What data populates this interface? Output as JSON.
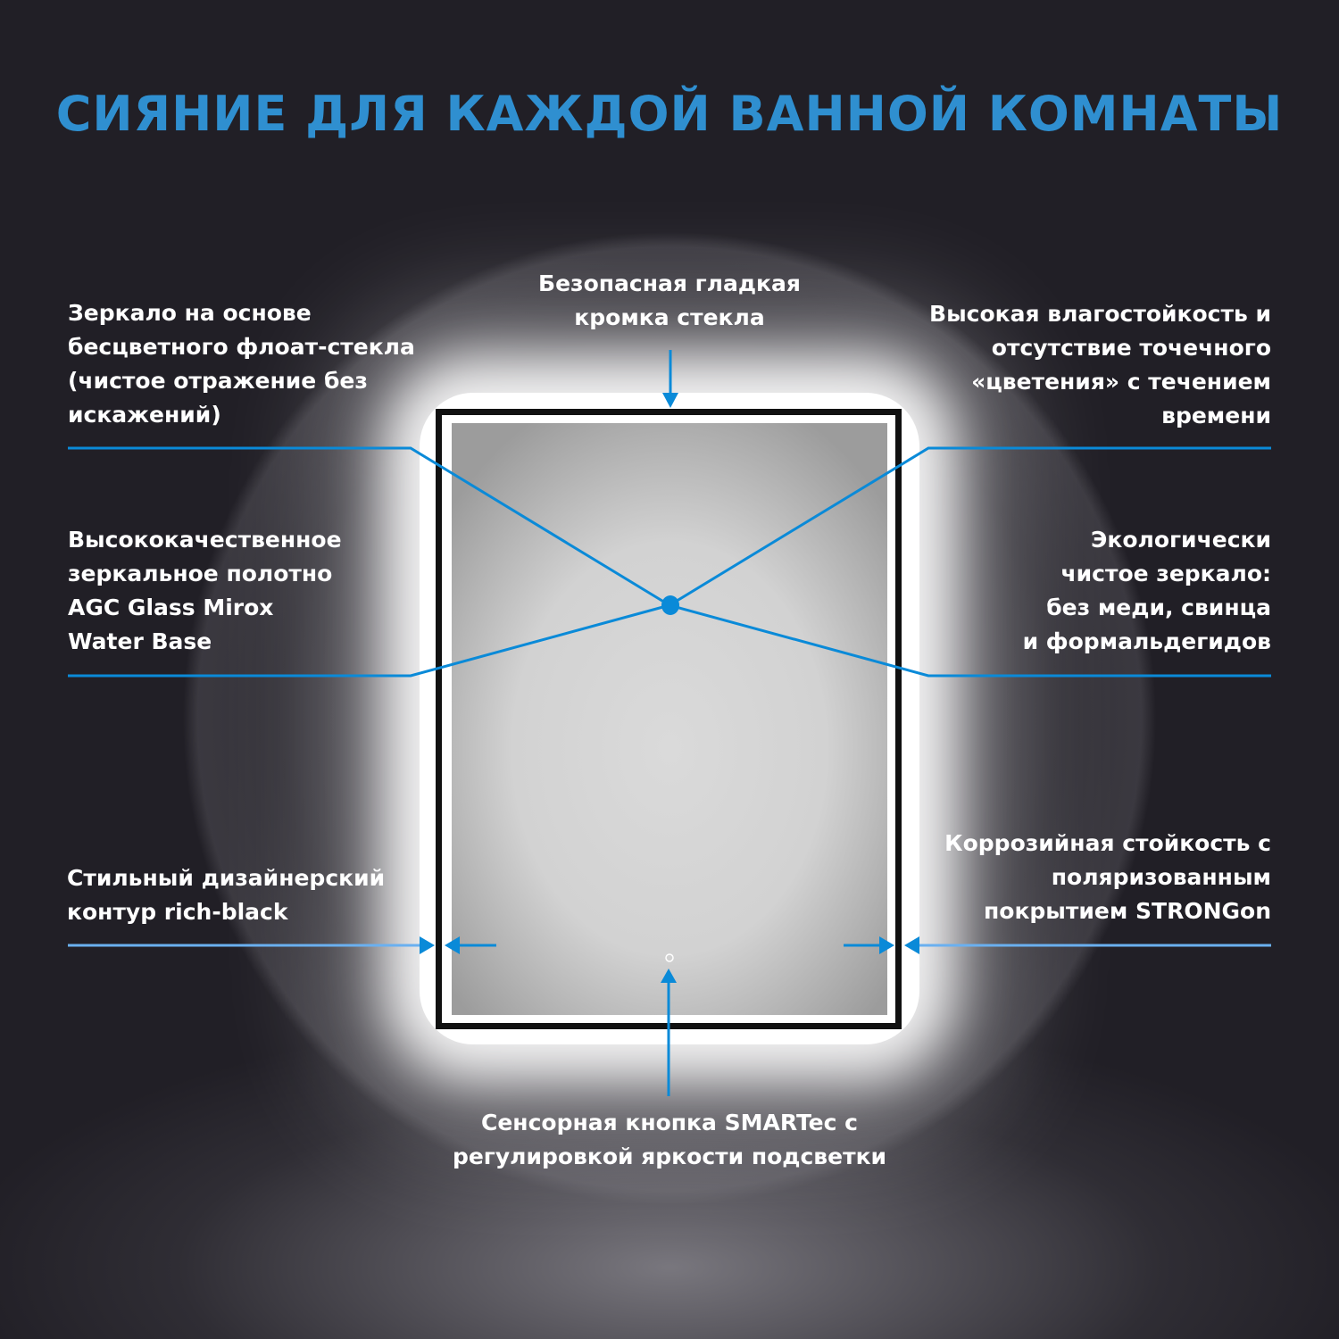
{
  "title": "СИЯНИЕ ДЛЯ КАЖДОЙ ВАННОЙ КОМНАТЫ",
  "accent_color": "#0a8ad8",
  "callouts": {
    "top_center": "Безопасная гладкая\nкромка стекла",
    "top_left": "Зеркало на основе\nбесцветного флоат-стекла\n(чистое отражение без\nискажений)",
    "top_right": "Высокая влагостойкость и\nотсутствие точечного\n«цветения» с течением\nвремени",
    "mid_left": "Высококачественное\nзеркальное полотно\nAGC Glass Mirox\nWater Base",
    "mid_right": "Экологически\nчистое зеркало:\nбез меди, свинца\nи формальдегидов",
    "bottom_left": "Стильный дизайнерский\nконтур rich-black",
    "bottom_right": "Коррозийная стойкость с\nполяризованным\nпокрытием STRONGon",
    "bottom_center": "Сенсорная кнопка SMARTec с\nрегулировкой яркости подсветки"
  }
}
